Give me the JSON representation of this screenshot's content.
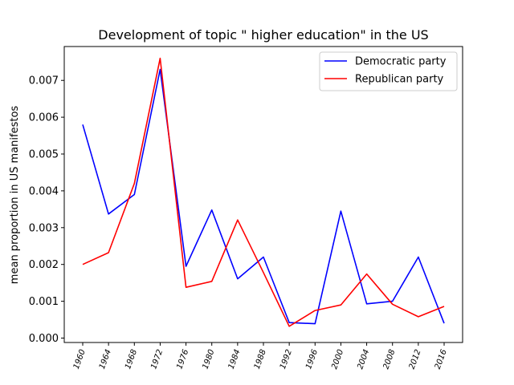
{
  "chart_data": {
    "type": "line",
    "title": "Development of topic \" higher education\" in the US",
    "xlabel": "",
    "ylabel": "mean proportion in US manifestos",
    "categories": [
      "1960",
      "1964",
      "1968",
      "1972",
      "1976",
      "1980",
      "1984",
      "1988",
      "1992",
      "1996",
      "2000",
      "2004",
      "2008",
      "2012",
      "2016"
    ],
    "y_ticks": [
      "0.000",
      "0.001",
      "0.002",
      "0.003",
      "0.004",
      "0.005",
      "0.006",
      "0.007"
    ],
    "ylim": [
      -0.00012,
      0.00792
    ],
    "grid": false,
    "legend_position": "top-right",
    "series": [
      {
        "name": "Democratic party",
        "color": "#0000ff",
        "values": [
          0.0058,
          0.00337,
          0.0039,
          0.0073,
          0.00195,
          0.00348,
          0.00161,
          0.0022,
          0.00042,
          0.00039,
          0.00345,
          0.00093,
          0.001,
          0.0022,
          0.0004
        ]
      },
      {
        "name": "Republican party",
        "color": "#ff0000",
        "values": [
          0.002,
          0.00232,
          0.0042,
          0.0076,
          0.00138,
          0.00154,
          0.00321,
          0.00178,
          0.00032,
          0.00075,
          0.0009,
          0.00174,
          0.00092,
          0.00058,
          0.00086
        ]
      }
    ]
  }
}
